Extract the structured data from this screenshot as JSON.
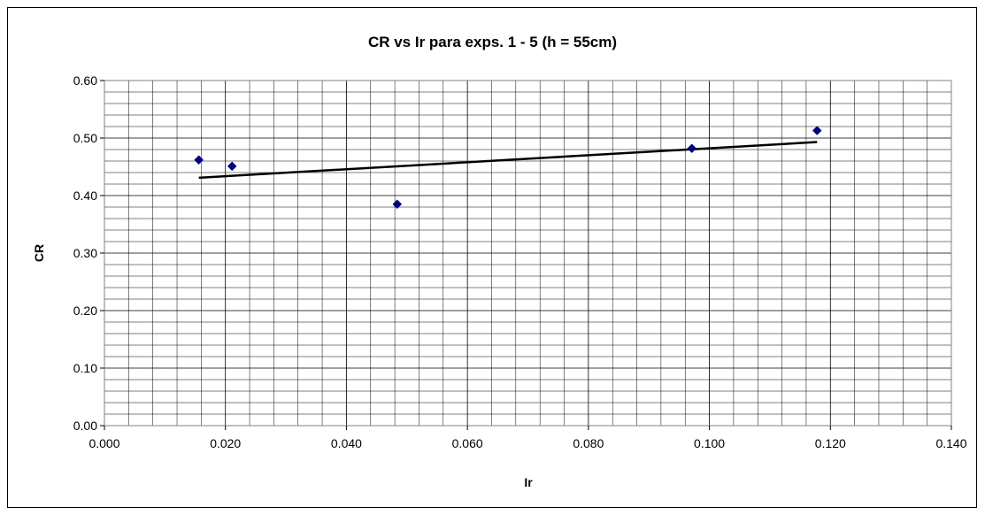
{
  "chart_data": {
    "type": "scatter",
    "title": "CR vs Ir para exps. 1 - 5  (h = 55cm)",
    "xlabel": "Ir",
    "ylabel": "CR",
    "xlim": [
      0,
      0.14
    ],
    "ylim": [
      0,
      0.6
    ],
    "x_ticks": [
      "0.000",
      "0.020",
      "0.040",
      "0.060",
      "0.080",
      "0.100",
      "0.120",
      "0.140"
    ],
    "y_ticks": [
      "0.00",
      "0.10",
      "0.20",
      "0.30",
      "0.40",
      "0.50",
      "0.60"
    ],
    "grid": true,
    "series": [
      {
        "marker": "diamond",
        "color": "#000080",
        "x": [
          0.0156,
          0.0211,
          0.0484,
          0.0971,
          0.1178
        ],
        "y": [
          0.462,
          0.451,
          0.385,
          0.482,
          0.513
        ]
      }
    ],
    "trendline": {
      "type": "linear",
      "color": "#000000",
      "x": [
        0.0156,
        0.1178
      ],
      "y": [
        0.431,
        0.493
      ]
    }
  }
}
